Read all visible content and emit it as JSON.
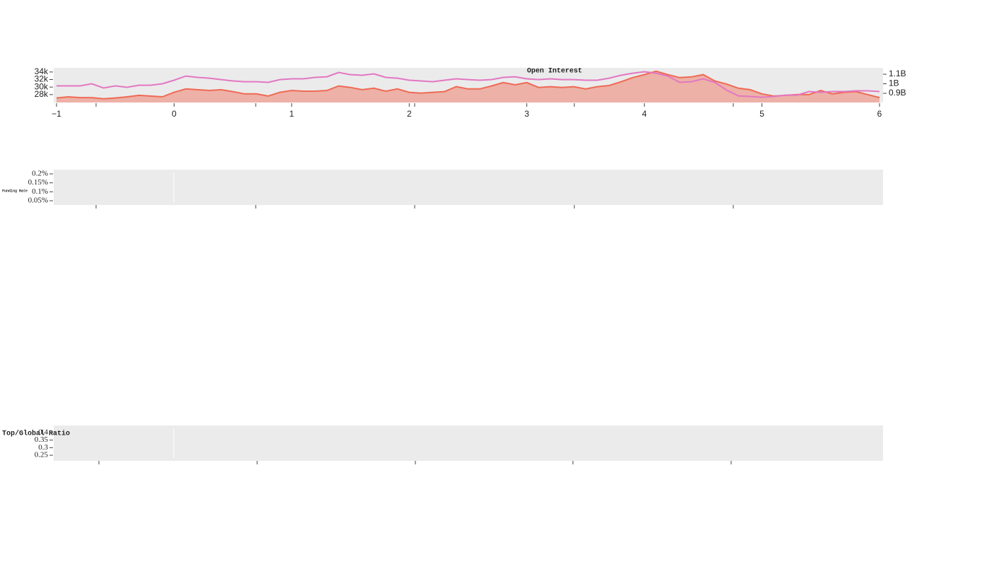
{
  "chart_data": [
    {
      "type": "line",
      "title": "Open Interest",
      "x": [
        -1,
        -0.9,
        -0.8,
        -0.7,
        -0.6,
        -0.5,
        -0.4,
        -0.3,
        -0.2,
        -0.1,
        0,
        0.1,
        0.2,
        0.3,
        0.4,
        0.5,
        0.6,
        0.7,
        0.8,
        0.9,
        1,
        1.1,
        1.2,
        1.3,
        1.4,
        1.5,
        1.6,
        1.7,
        1.8,
        1.9,
        2,
        2.1,
        2.2,
        2.3,
        2.4,
        2.5,
        2.6,
        2.7,
        2.8,
        2.9,
        3,
        3.1,
        3.2,
        3.3,
        3.4,
        3.5,
        3.6,
        3.7,
        3.8,
        3.9,
        4,
        4.1,
        4.2,
        4.3,
        4.4,
        4.5,
        4.6,
        4.7,
        4.8,
        4.9,
        5,
        5.1,
        5.2,
        5.3,
        5.4,
        5.5,
        5.6,
        5.7,
        5.8,
        5.9,
        6
      ],
      "series": [
        {
          "color": "#ef6a55",
          "fill": true,
          "axis": "y",
          "values": [
            27100,
            27400,
            27200,
            27200,
            26900,
            27100,
            27400,
            27800,
            27600,
            27400,
            28600,
            29500,
            29300,
            29100,
            29300,
            28800,
            28200,
            28200,
            27600,
            28600,
            29100,
            28900,
            28900,
            29100,
            30300,
            29900,
            29300,
            29700,
            28900,
            29500,
            28600,
            28400,
            28600,
            28800,
            30100,
            29500,
            29500,
            30300,
            31200,
            30600,
            31200,
            29900,
            30100,
            29900,
            30100,
            29500,
            30100,
            30400,
            31400,
            32500,
            33300,
            34200,
            33300,
            32500,
            32700,
            33300,
            31600,
            30800,
            29700,
            29300,
            28200,
            27600,
            27800,
            28000,
            28000,
            29100,
            28200,
            28600,
            28800,
            28000,
            27200
          ]
        },
        {
          "color": "#e377c2",
          "fill": false,
          "axis": "y2",
          "values": [
            978000000,
            978000000,
            978000000,
            1000000000,
            956000000,
            978000000,
            963000000,
            985000000,
            985000000,
            1000000000,
            1037000000,
            1081000000,
            1067000000,
            1059000000,
            1044000000,
            1030000000,
            1022000000,
            1022000000,
            1015000000,
            1044000000,
            1052000000,
            1052000000,
            1067000000,
            1074000000,
            1119000000,
            1096000000,
            1089000000,
            1104000000,
            1067000000,
            1059000000,
            1037000000,
            1030000000,
            1022000000,
            1037000000,
            1052000000,
            1044000000,
            1037000000,
            1044000000,
            1067000000,
            1074000000,
            1052000000,
            1044000000,
            1052000000,
            1044000000,
            1044000000,
            1037000000,
            1037000000,
            1059000000,
            1089000000,
            1111000000,
            1126000000,
            1111000000,
            1081000000,
            1015000000,
            1022000000,
            1052000000,
            1015000000,
            933000000,
            874000000,
            867000000,
            859000000,
            867000000,
            881000000,
            881000000,
            919000000,
            911000000,
            919000000,
            919000000,
            926000000,
            926000000,
            919000000
          ]
        }
      ],
      "xlim": [
        -1.024,
        6.03
      ],
      "xticks": [
        {
          "value": -1,
          "label": "−1"
        },
        0,
        1,
        2,
        3,
        4,
        5,
        6
      ],
      "ylim": [
        25900,
        35100
      ],
      "yticks": [
        {
          "value": 34000,
          "label": "34k"
        },
        {
          "value": 32000,
          "label": "32k"
        },
        {
          "value": 30000,
          "label": "30k"
        },
        {
          "value": 28000,
          "label": "28k"
        }
      ],
      "y2lim": [
        804000000,
        1167000000
      ],
      "y2ticks": [
        {
          "value": 1100000000,
          "label": "1.1B"
        },
        {
          "value": 1000000000,
          "label": "1B"
        },
        {
          "value": 900000000,
          "label": "0.9B"
        }
      ]
    },
    {
      "type": "line",
      "y_label": "Funding Rate",
      "series": [],
      "ylim": [
        0.0263,
        0.2237
      ],
      "yticks": [
        {
          "value": 0.2,
          "label": "0.2%"
        },
        {
          "value": 0.15,
          "label": "0.15%"
        },
        {
          "value": 0.1,
          "label": "0.1%"
        },
        {
          "value": 0.05,
          "label": "0.05%"
        }
      ]
    },
    {
      "type": "line",
      "y_label": "Top/Global Ratio",
      "series": [],
      "ylim": [
        0.213,
        0.4465
      ],
      "yticks": [
        0.4,
        0.35,
        0.3,
        0.25
      ]
    }
  ]
}
